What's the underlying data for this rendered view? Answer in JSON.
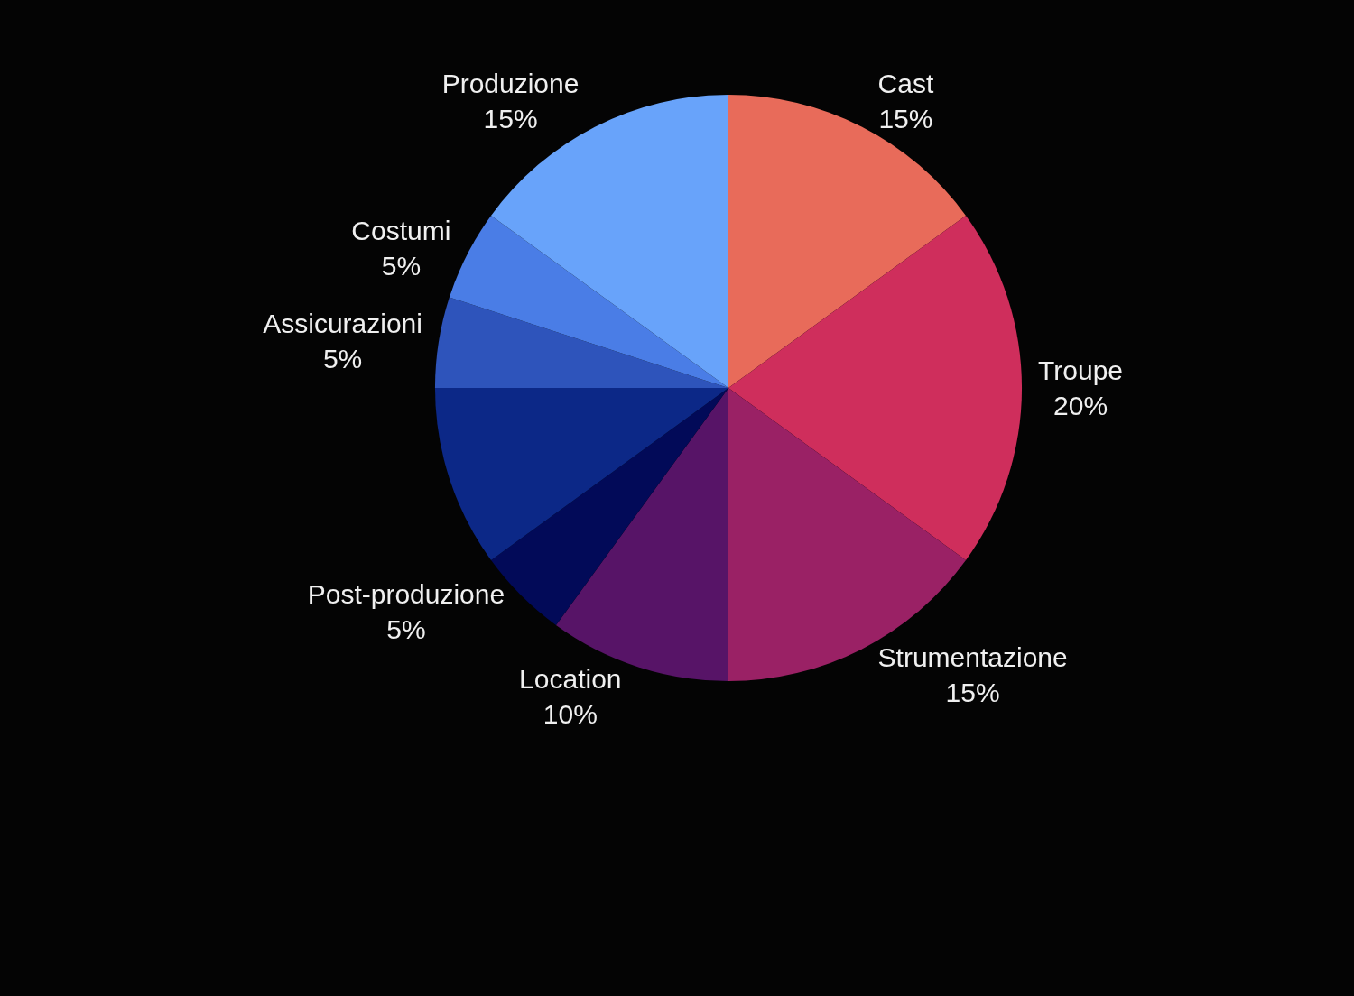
{
  "chart_data": {
    "type": "pie",
    "categories": [
      "Cast",
      "Troupe",
      "Strumentazione",
      "Location",
      "Post-produzione",
      null,
      "Assicurazioni",
      "Costumi",
      "Produzione"
    ],
    "values": [
      15,
      20,
      15,
      10,
      5,
      10,
      5,
      5,
      15
    ],
    "value_labels": [
      "15%",
      "20%",
      "15%",
      "10%",
      "5%",
      null,
      "5%",
      "5%",
      "15%"
    ],
    "colors": [
      "#e86b5a",
      "#cf2e5c",
      "#9a2165",
      "#571467",
      "#020a58",
      "#0c2887",
      "#2e54bb",
      "#4a7de6",
      "#68a3fa"
    ],
    "legend": false
  }
}
